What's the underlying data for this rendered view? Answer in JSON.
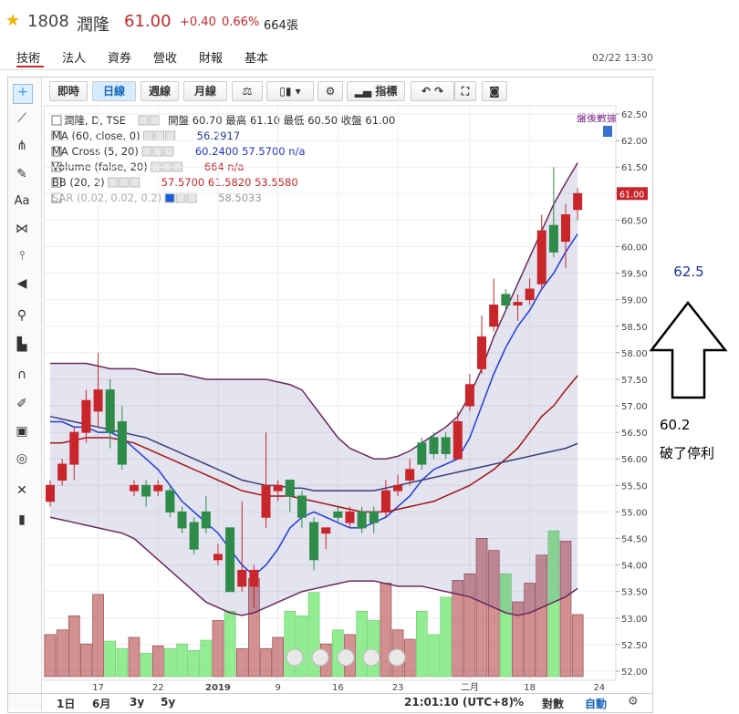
{
  "header": {
    "code": "1808",
    "name": "潤隆",
    "price": "61.00",
    "change": "+0.40",
    "pct": "0.66%",
    "volume": "664張"
  },
  "tabs": [
    "技術",
    "法人",
    "資券",
    "營收",
    "財報",
    "基本"
  ],
  "timestamp": "02/22 13:30",
  "toolbar": [
    "即時",
    "日線",
    "週線",
    "月線",
    "指標"
  ],
  "legend": [
    {
      "name": "潤隆, D, TSE",
      "text": "開盤 60.70 最高 61.10 最低 60.50 收盤 61.00"
    },
    {
      "name": "MA (60, close, 0)",
      "text": "56.2917"
    },
    {
      "name": "MA Cross (5, 20)",
      "text": "60.2400 57.5700 n/a"
    },
    {
      "name": "Volume (false, 20)",
      "text": "664 n/a"
    },
    {
      "name": "BB (20, 2)",
      "text": "57.5700 61.5820 53.5580"
    },
    {
      "name": "SAR (0.02, 0.02, 0.2)",
      "text": "58.5033"
    }
  ],
  "after_hours": "盤後數據",
  "ranges": [
    "1日",
    "6月",
    "3y",
    "5y"
  ],
  "clock": "21:01:10 (UTC+8)",
  "options": [
    "%",
    "對數",
    "自動"
  ],
  "annotation": {
    "target": "62.5",
    "stop": "60.2",
    "note": "破了停利"
  },
  "chart_data": {
    "type": "candlestick",
    "categories": [
      null,
      null,
      null,
      null,
      "17",
      null,
      null,
      null,
      null,
      "22",
      null,
      null,
      null,
      null,
      "2019",
      null,
      null,
      null,
      null,
      "9",
      null,
      null,
      null,
      null,
      "16",
      null,
      null,
      null,
      null,
      "23",
      null,
      null,
      null,
      null,
      null,
      "二月",
      null,
      null,
      null,
      null,
      "18",
      null,
      null,
      null,
      null
    ],
    "x_extra_label": "24",
    "ohlc": [
      [
        55.2,
        55.6,
        55.1,
        55.5
      ],
      [
        55.6,
        56.0,
        55.5,
        55.9
      ],
      [
        55.9,
        56.6,
        55.6,
        56.5
      ],
      [
        56.5,
        57.3,
        56.3,
        57.1
      ],
      [
        56.9,
        58.0,
        56.6,
        57.3
      ],
      [
        57.3,
        57.5,
        56.2,
        56.5
      ],
      [
        56.7,
        57.0,
        55.8,
        55.9
      ],
      [
        55.4,
        55.6,
        55.3,
        55.5
      ],
      [
        55.5,
        55.6,
        55.1,
        55.3
      ],
      [
        55.4,
        55.6,
        55.3,
        55.5
      ],
      [
        55.4,
        55.5,
        54.9,
        55.0
      ],
      [
        55.0,
        55.1,
        54.6,
        54.7
      ],
      [
        54.8,
        54.9,
        54.2,
        54.3
      ],
      [
        55.0,
        55.3,
        54.6,
        54.7
      ],
      [
        54.1,
        54.4,
        54.0,
        54.2
      ],
      [
        54.7,
        54.7,
        53.5,
        53.5
      ],
      [
        53.6,
        55.2,
        53.5,
        53.9
      ],
      [
        53.6,
        54.0,
        53.2,
        53.9
      ],
      [
        54.9,
        56.5,
        54.7,
        55.5
      ],
      [
        55.4,
        55.6,
        55.2,
        55.5
      ],
      [
        55.6,
        55.6,
        55.0,
        55.3
      ],
      [
        55.3,
        55.4,
        54.7,
        54.9
      ],
      [
        54.8,
        54.9,
        53.9,
        54.1
      ],
      [
        54.6,
        54.7,
        54.3,
        54.7
      ],
      [
        55.0,
        55.1,
        54.8,
        54.9
      ],
      [
        54.8,
        55.1,
        54.7,
        55.0
      ],
      [
        55.0,
        55.1,
        54.6,
        54.7
      ],
      [
        55.0,
        55.1,
        54.6,
        54.8
      ],
      [
        55.0,
        55.6,
        54.9,
        55.4
      ],
      [
        55.4,
        55.7,
        55.3,
        55.5
      ],
      [
        55.6,
        56.0,
        55.5,
        55.8
      ],
      [
        56.3,
        56.4,
        55.8,
        55.9
      ],
      [
        56.4,
        56.5,
        56.0,
        56.1
      ],
      [
        56.4,
        56.5,
        56.0,
        56.1
      ],
      [
        56.0,
        56.9,
        56.0,
        56.7
      ],
      [
        57.0,
        57.6,
        56.9,
        57.4
      ],
      [
        57.7,
        58.7,
        57.6,
        58.3
      ],
      [
        58.5,
        59.4,
        58.4,
        58.9
      ],
      [
        59.1,
        59.2,
        58.8,
        58.9
      ],
      [
        58.9,
        59.1,
        58.6,
        58.95
      ],
      [
        59.0,
        59.4,
        58.9,
        59.2
      ],
      [
        59.3,
        60.6,
        59.2,
        60.3
      ],
      [
        60.4,
        61.5,
        59.8,
        59.9
      ],
      [
        60.1,
        60.8,
        59.6,
        60.6
      ],
      [
        60.7,
        61.1,
        60.5,
        61.0
      ]
    ],
    "up_color": "#c8262b",
    "down_color": "#2e8b4a",
    "lines": [
      {
        "name": "MA5",
        "color": "#1f3fd8",
        "values": [
          56.7,
          56.7,
          56.6,
          56.6,
          56.5,
          56.5,
          56.4,
          56.2,
          56.0,
          55.8,
          55.5,
          55.2,
          55.0,
          54.8,
          54.6,
          54.3,
          54.0,
          53.8,
          54.0,
          54.3,
          54.7,
          54.9,
          55.0,
          54.9,
          54.8,
          54.7,
          54.7,
          54.8,
          54.9,
          55.1,
          55.3,
          55.6,
          55.8,
          55.9,
          56.0,
          56.4,
          57.0,
          57.6,
          58.1,
          58.5,
          58.8,
          59.2,
          59.5,
          59.9,
          60.24
        ]
      },
      {
        "name": "MA20",
        "color": "#a01414",
        "values": [
          56.3,
          56.3,
          56.35,
          56.4,
          56.4,
          56.4,
          56.35,
          56.3,
          56.2,
          56.1,
          56.0,
          55.9,
          55.8,
          55.7,
          55.6,
          55.5,
          55.4,
          55.35,
          55.3,
          55.3,
          55.3,
          55.25,
          55.2,
          55.15,
          55.1,
          55.05,
          55.0,
          55.0,
          55.0,
          55.05,
          55.1,
          55.15,
          55.2,
          55.3,
          55.4,
          55.5,
          55.65,
          55.8,
          56.0,
          56.2,
          56.5,
          56.8,
          57.0,
          57.3,
          57.57
        ]
      },
      {
        "name": "MA60",
        "color": "#3c3c78",
        "values": [
          56.8,
          56.75,
          56.7,
          56.65,
          56.6,
          56.55,
          56.5,
          56.45,
          56.4,
          56.3,
          56.2,
          56.1,
          56.0,
          55.9,
          55.8,
          55.7,
          55.6,
          55.55,
          55.5,
          55.5,
          55.45,
          55.45,
          55.4,
          55.4,
          55.4,
          55.4,
          55.4,
          55.4,
          55.45,
          55.5,
          55.55,
          55.6,
          55.65,
          55.7,
          55.75,
          55.8,
          55.85,
          55.9,
          55.95,
          56.0,
          56.05,
          56.1,
          56.15,
          56.2,
          56.29
        ]
      },
      {
        "name": "BB upper",
        "color": "#6a2a5c",
        "values": [
          57.8,
          57.8,
          57.8,
          57.8,
          57.75,
          57.7,
          57.7,
          57.7,
          57.65,
          57.6,
          57.6,
          57.6,
          57.55,
          57.5,
          57.5,
          57.5,
          57.5,
          57.5,
          57.5,
          57.45,
          57.4,
          57.3,
          57.0,
          56.7,
          56.4,
          56.2,
          56.1,
          56.0,
          56.0,
          56.05,
          56.15,
          56.3,
          56.45,
          56.6,
          56.8,
          57.2,
          57.7,
          58.3,
          58.8,
          59.3,
          59.8,
          60.3,
          60.8,
          61.2,
          61.58
        ]
      },
      {
        "name": "BB lower",
        "color": "#6a2a5c",
        "values": [
          54.9,
          54.85,
          54.8,
          54.75,
          54.7,
          54.65,
          54.6,
          54.5,
          54.3,
          54.1,
          53.9,
          53.7,
          53.5,
          53.3,
          53.2,
          53.1,
          53.05,
          53.1,
          53.2,
          53.3,
          53.4,
          53.5,
          53.55,
          53.6,
          53.65,
          53.7,
          53.7,
          53.7,
          53.65,
          53.6,
          53.6,
          53.6,
          53.55,
          53.5,
          53.45,
          53.4,
          53.3,
          53.2,
          53.1,
          53.05,
          53.1,
          53.2,
          53.3,
          53.4,
          53.56
        ]
      }
    ],
    "band_color": "#5a509f",
    "volume": [
      450,
      500,
      650,
      350,
      880,
      380,
      300,
      420,
      250,
      330,
      300,
      350,
      280,
      390,
      600,
      700,
      300,
      1050,
      300,
      420,
      700,
      650,
      900,
      350,
      500,
      450,
      700,
      600,
      1000,
      500,
      400,
      700,
      450,
      850,
      1030,
      1100,
      1480,
      1350,
      1100,
      800,
      1000,
      1300,
      1560,
      1450,
      664
    ],
    "vlim": [
      0,
      2000
    ],
    "ylim": [
      52,
      62.5
    ],
    "yticks": [
      {
        "value": 52,
        "label": "52.00"
      },
      {
        "value": 52.5,
        "label": "52.50"
      },
      {
        "value": 53,
        "label": "53.00"
      },
      {
        "value": 53.5,
        "label": "53.50"
      },
      {
        "value": 54,
        "label": "54.00"
      },
      {
        "value": 54.5,
        "label": "54.50"
      },
      {
        "value": 55,
        "label": "55.00"
      },
      {
        "value": 55.5,
        "label": "55.50"
      },
      {
        "value": 56,
        "label": "56.00"
      },
      {
        "value": 56.5,
        "label": "56.50"
      },
      {
        "value": 57,
        "label": "57.00"
      },
      {
        "value": 57.5,
        "label": "57.50"
      },
      {
        "value": 58,
        "label": "58.00"
      },
      {
        "value": 58.5,
        "label": "58.50"
      },
      {
        "value": 59,
        "label": "59.00"
      },
      {
        "value": 59.5,
        "label": "59.50"
      },
      {
        "value": 60,
        "label": "60.00"
      },
      {
        "value": 60.5,
        "label": "60.50"
      },
      {
        "value": 61,
        "label": "61.00"
      },
      {
        "value": 61.5,
        "label": "61.50"
      },
      {
        "value": 62,
        "label": "62.00"
      },
      {
        "value": 62.5,
        "label": "62.50"
      }
    ],
    "last_price_label": "61.00",
    "grid": true
  }
}
